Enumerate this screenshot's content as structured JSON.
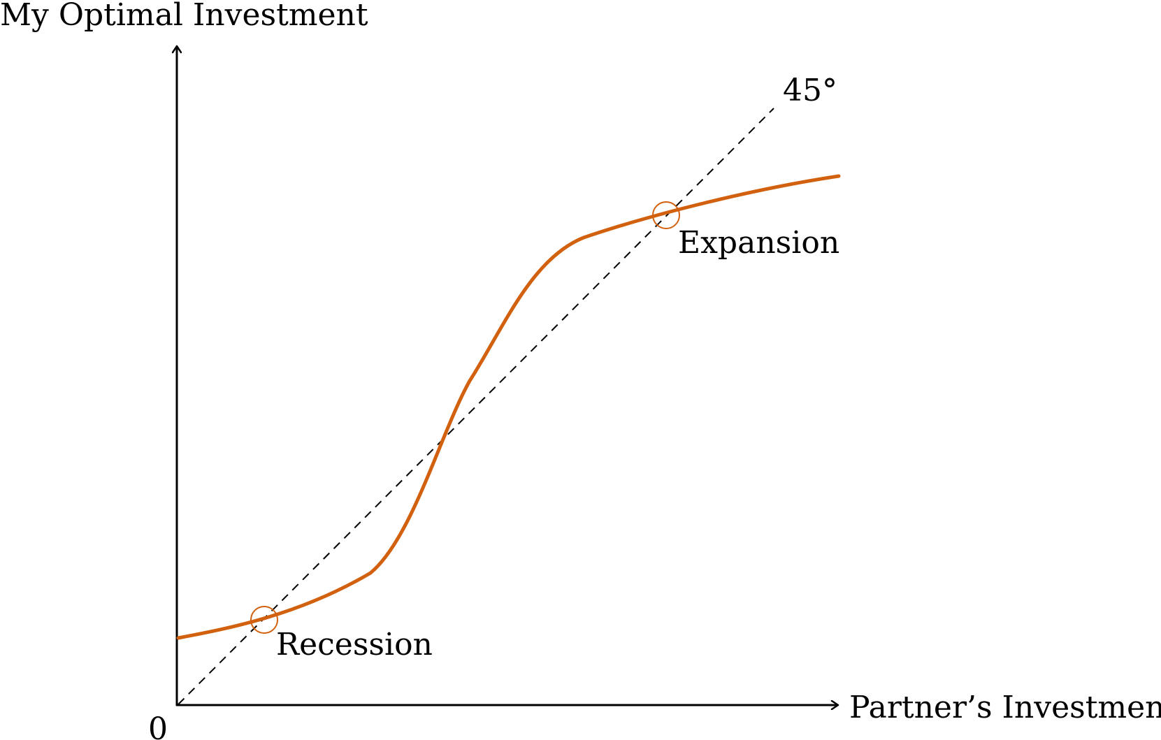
{
  "y_axis_label": "My Optimal Investment",
  "x_axis_label": "Partner’s Investment",
  "origin_label": "0",
  "diagonal_label": "45°",
  "equilibria": [
    {
      "label": "Recession"
    },
    {
      "label": "Expansion"
    }
  ],
  "colors": {
    "curve": "#d2610f",
    "axes": "#000000",
    "diagonal": "#000000"
  }
}
